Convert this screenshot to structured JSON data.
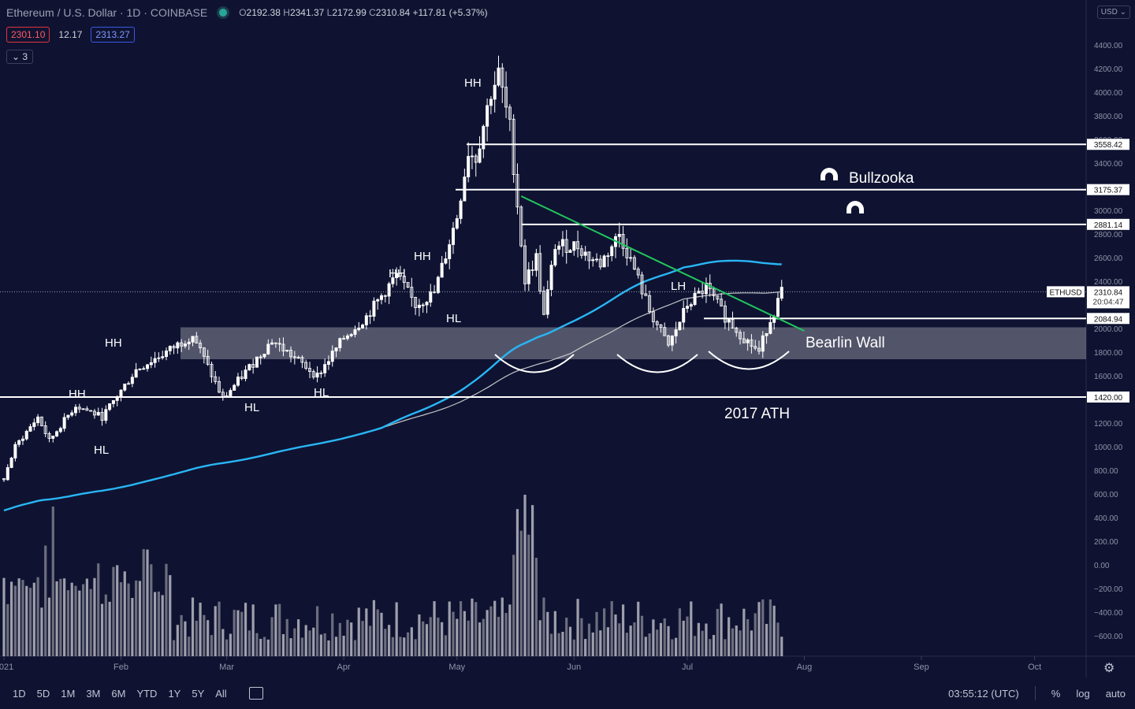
{
  "header": {
    "symbol": "Ethereum / U.S. Dollar · 1D · COINBASE",
    "o_label": "O",
    "o": "2192.38",
    "h_label": "H",
    "h": "2341.37",
    "l_label": "L",
    "l": "2172.99",
    "c_label": "C",
    "c": "2310.84",
    "change": "+117.81 (+5.37%)"
  },
  "badges": {
    "bid": "2301.10",
    "spread": "12.17",
    "ask": "2313.27"
  },
  "indicator_toggle": "3",
  "currency_button": "USD",
  "colors": {
    "background": "#0f1331",
    "candle": "#ffffff",
    "ma_fast": "#29b6f6",
    "ma_slow": "#d8d8d8",
    "trendline": "#22c55e",
    "zone": "#8a8d99"
  },
  "chart_data": {
    "type": "candlestick",
    "y_scale": "linear",
    "ylim": [
      -700,
      4550
    ],
    "y_ticks": [
      "4400.00",
      "4200.00",
      "4000.00",
      "3800.00",
      "3600.00",
      "3400.00",
      "3200.00",
      "3000.00",
      "2800.00",
      "2600.00",
      "2400.00",
      "2200.00",
      "2000.00",
      "1800.00",
      "1600.00",
      "1400.00",
      "1200.00",
      "1000.00",
      "800.00",
      "600.00",
      "400.00",
      "200.00",
      "0.00",
      "−200.00",
      "−400.00",
      "−600.00"
    ],
    "x_ticks": [
      "2021",
      "Feb",
      "Mar",
      "Apr",
      "May",
      "Jun",
      "Jul",
      "Aug",
      "Sep",
      "Oct"
    ],
    "price_path": [
      [
        "2021-01-01",
        730
      ],
      [
        "2021-01-04",
        1000
      ],
      [
        "2021-01-10",
        1250
      ],
      [
        "2021-01-13",
        1050
      ],
      [
        "2021-01-20",
        1350
      ],
      [
        "2021-01-27",
        1250
      ],
      [
        "2021-02-05",
        1650
      ],
      [
        "2021-02-14",
        1820
      ],
      [
        "2021-02-20",
        1950
      ],
      [
        "2021-02-28",
        1400
      ],
      [
        "2021-03-02",
        1480
      ],
      [
        "2021-03-13",
        1900
      ],
      [
        "2021-03-25",
        1600
      ],
      [
        "2021-04-01",
        1920
      ],
      [
        "2021-04-07",
        2100
      ],
      [
        "2021-04-15",
        2450
      ],
      [
        "2021-04-20",
        2200
      ],
      [
        "2021-04-25",
        2300
      ],
      [
        "2021-05-01",
        2950
      ],
      [
        "2021-05-04",
        3500
      ],
      [
        "2021-05-06",
        3450
      ],
      [
        "2021-05-10",
        4000
      ],
      [
        "2021-05-12",
        4150
      ],
      [
        "2021-05-15",
        3700
      ],
      [
        "2021-05-19",
        2400
      ],
      [
        "2021-05-22",
        2600
      ],
      [
        "2021-05-24",
        2100
      ],
      [
        "2021-05-27",
        2700
      ],
      [
        "2021-06-02",
        2700
      ],
      [
        "2021-06-05",
        2600
      ],
      [
        "2021-06-08",
        2550
      ],
      [
        "2021-06-13",
        2800
      ],
      [
        "2021-06-17",
        2500
      ],
      [
        "2021-06-21",
        2150
      ],
      [
        "2021-06-26",
        1850
      ],
      [
        "2021-07-01",
        2200
      ],
      [
        "2021-07-06",
        2350
      ],
      [
        "2021-07-11",
        2100
      ],
      [
        "2021-07-16",
        1920
      ],
      [
        "2021-07-20",
        1800
      ],
      [
        "2021-07-22",
        2000
      ],
      [
        "2021-07-24",
        2150
      ],
      [
        "2021-07-26",
        2310
      ]
    ],
    "price_lines": [
      {
        "label": "3558.42",
        "value": 3558.42
      },
      {
        "label": "3175.37",
        "value": 3175.37
      },
      {
        "label": "2881.14",
        "value": 2881.14
      },
      {
        "label": "2084.94",
        "value": 2084.94
      },
      {
        "label": "1420.00",
        "value": 1420.0
      }
    ],
    "current_price": {
      "ticker": "ETHUSD",
      "value": "2310.84",
      "countdown": "20:04:47"
    },
    "zone": {
      "low": 1740,
      "high": 2010
    },
    "trendline": {
      "start": [
        "2021-05-18",
        3120
      ],
      "end": [
        "2021-08-01",
        1980
      ]
    },
    "annotations": {
      "hh": [
        "HH",
        "HH",
        "HH",
        "HH",
        "HH"
      ],
      "hl": [
        "HL",
        "HL",
        "HL",
        "HL"
      ],
      "lh": "LH",
      "bullzooka": "Bullzooka",
      "bearlin": "Bearlin Wall",
      "ath": "2017 ATH"
    },
    "volume": {
      "peak_day": "2021-05-19"
    }
  },
  "bottombar": {
    "timeframes": [
      "1D",
      "5D",
      "1M",
      "3M",
      "6M",
      "YTD",
      "1Y",
      "5Y",
      "All"
    ],
    "clock": "03:55:12 (UTC)",
    "pct": "%",
    "log": "log",
    "auto": "auto"
  }
}
